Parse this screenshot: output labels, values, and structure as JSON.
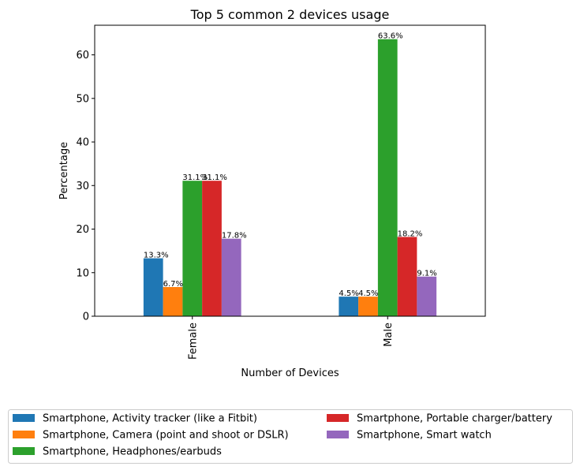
{
  "chart_data": {
    "type": "bar",
    "title": "Top 5 common 2 devices usage",
    "xlabel": "Number of Devices",
    "ylabel": "Percentage",
    "categories": [
      "Female",
      "Male"
    ],
    "ylim": [
      0,
      66.8
    ],
    "yticks": [
      0,
      10,
      20,
      30,
      40,
      50,
      60
    ],
    "grid": false,
    "legend_position": "bottom",
    "series": [
      {
        "name": "Smartphone, Activity tracker (like a Fitbit)",
        "color": "#1f77b4",
        "values": [
          13.3,
          4.5
        ],
        "labels": [
          "13.3%",
          "4.5%"
        ]
      },
      {
        "name": "Smartphone, Camera (point and shoot or DSLR)",
        "color": "#ff7f0e",
        "values": [
          6.7,
          4.5
        ],
        "labels": [
          "6.7%",
          "4.5%"
        ]
      },
      {
        "name": "Smartphone, Headphones/earbuds",
        "color": "#2ca02c",
        "values": [
          31.1,
          63.6
        ],
        "labels": [
          "31.1%",
          "63.6%"
        ]
      },
      {
        "name": "Smartphone, Portable charger/battery",
        "color": "#d62728",
        "values": [
          31.1,
          18.2
        ],
        "labels": [
          "31.1%",
          "18.2%"
        ]
      },
      {
        "name": "Smartphone, Smart watch",
        "color": "#9467bd",
        "values": [
          17.8,
          9.1
        ],
        "labels": [
          "17.8%",
          "9.1%"
        ]
      }
    ]
  }
}
